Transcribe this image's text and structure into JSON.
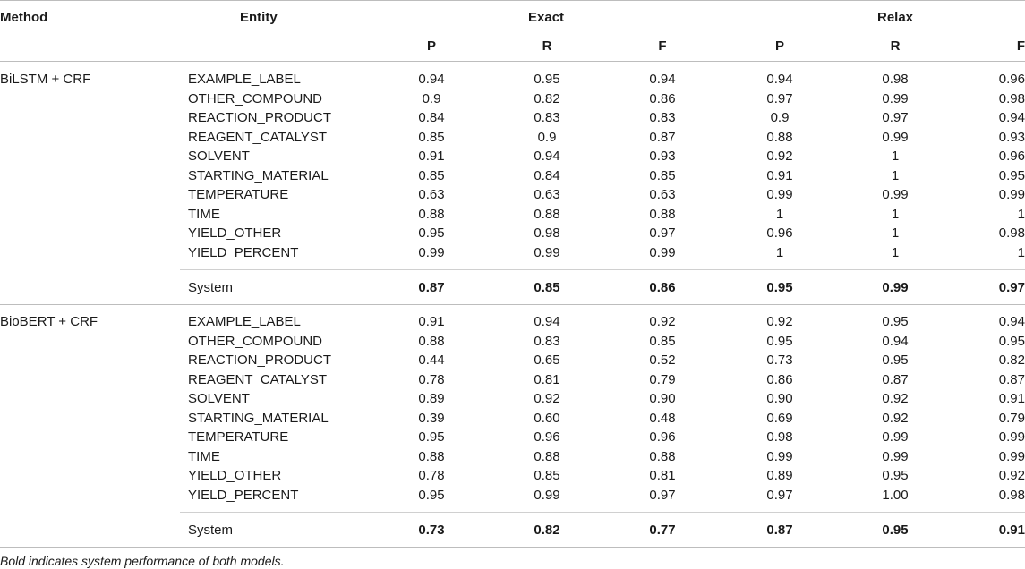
{
  "table": {
    "headers": {
      "method": "Method",
      "entity": "Entity",
      "exact": "Exact",
      "relax": "Relax",
      "sub": [
        "P",
        "R",
        "F",
        "P",
        "R",
        "F"
      ]
    },
    "groups": [
      {
        "method": "BiLSTM + CRF",
        "rows": [
          {
            "entity": "EXAMPLE_LABEL",
            "values": [
              "0.94",
              "0.95",
              "0.94",
              "0.94",
              "0.98",
              "0.96"
            ]
          },
          {
            "entity": "OTHER_COMPOUND",
            "values": [
              "0.9",
              "0.82",
              "0.86",
              "0.97",
              "0.99",
              "0.98"
            ]
          },
          {
            "entity": "REACTION_PRODUCT",
            "values": [
              "0.84",
              "0.83",
              "0.83",
              "0.9",
              "0.97",
              "0.94"
            ]
          },
          {
            "entity": "REAGENT_CATALYST",
            "values": [
              "0.85",
              "0.9",
              "0.87",
              "0.88",
              "0.99",
              "0.93"
            ]
          },
          {
            "entity": "SOLVENT",
            "values": [
              "0.91",
              "0.94",
              "0.93",
              "0.92",
              "1",
              "0.96"
            ]
          },
          {
            "entity": "STARTING_MATERIAL",
            "values": [
              "0.85",
              "0.84",
              "0.85",
              "0.91",
              "1",
              "0.95"
            ]
          },
          {
            "entity": "TEMPERATURE",
            "values": [
              "0.63",
              "0.63",
              "0.63",
              "0.99",
              "0.99",
              "0.99"
            ]
          },
          {
            "entity": "TIME",
            "values": [
              "0.88",
              "0.88",
              "0.88",
              "1",
              "1",
              "1"
            ]
          },
          {
            "entity": "YIELD_OTHER",
            "values": [
              "0.95",
              "0.98",
              "0.97",
              "0.96",
              "1",
              "0.98"
            ]
          },
          {
            "entity": "YIELD_PERCENT",
            "values": [
              "0.99",
              "0.99",
              "0.99",
              "1",
              "1",
              "1"
            ]
          }
        ],
        "system": {
          "entity": "System",
          "values": [
            "0.87",
            "0.85",
            "0.86",
            "0.95",
            "0.99",
            "0.97"
          ]
        }
      },
      {
        "method": "BioBERT + CRF",
        "rows": [
          {
            "entity": "EXAMPLE_LABEL",
            "values": [
              "0.91",
              "0.94",
              "0.92",
              "0.92",
              "0.95",
              "0.94"
            ]
          },
          {
            "entity": "OTHER_COMPOUND",
            "values": [
              "0.88",
              "0.83",
              "0.85",
              "0.95",
              "0.94",
              "0.95"
            ]
          },
          {
            "entity": "REACTION_PRODUCT",
            "values": [
              "0.44",
              "0.65",
              "0.52",
              "0.73",
              "0.95",
              "0.82"
            ]
          },
          {
            "entity": "REAGENT_CATALYST",
            "values": [
              "0.78",
              "0.81",
              "0.79",
              "0.86",
              "0.87",
              "0.87"
            ]
          },
          {
            "entity": "SOLVENT",
            "values": [
              "0.89",
              "0.92",
              "0.90",
              "0.90",
              "0.92",
              "0.91"
            ]
          },
          {
            "entity": "STARTING_MATERIAL",
            "values": [
              "0.39",
              "0.60",
              "0.48",
              "0.69",
              "0.92",
              "0.79"
            ]
          },
          {
            "entity": "TEMPERATURE",
            "values": [
              "0.95",
              "0.96",
              "0.96",
              "0.98",
              "0.99",
              "0.99"
            ]
          },
          {
            "entity": "TIME",
            "values": [
              "0.88",
              "0.88",
              "0.88",
              "0.99",
              "0.99",
              "0.99"
            ]
          },
          {
            "entity": "YIELD_OTHER",
            "values": [
              "0.78",
              "0.85",
              "0.81",
              "0.89",
              "0.95",
              "0.92"
            ]
          },
          {
            "entity": "YIELD_PERCENT",
            "values": [
              "0.95",
              "0.99",
              "0.97",
              "0.97",
              "1.00",
              "0.98"
            ]
          }
        ],
        "system": {
          "entity": "System",
          "values": [
            "0.73",
            "0.82",
            "0.77",
            "0.87",
            "0.95",
            "0.91"
          ]
        }
      }
    ],
    "footnote": "Bold indicates system performance of both models."
  }
}
